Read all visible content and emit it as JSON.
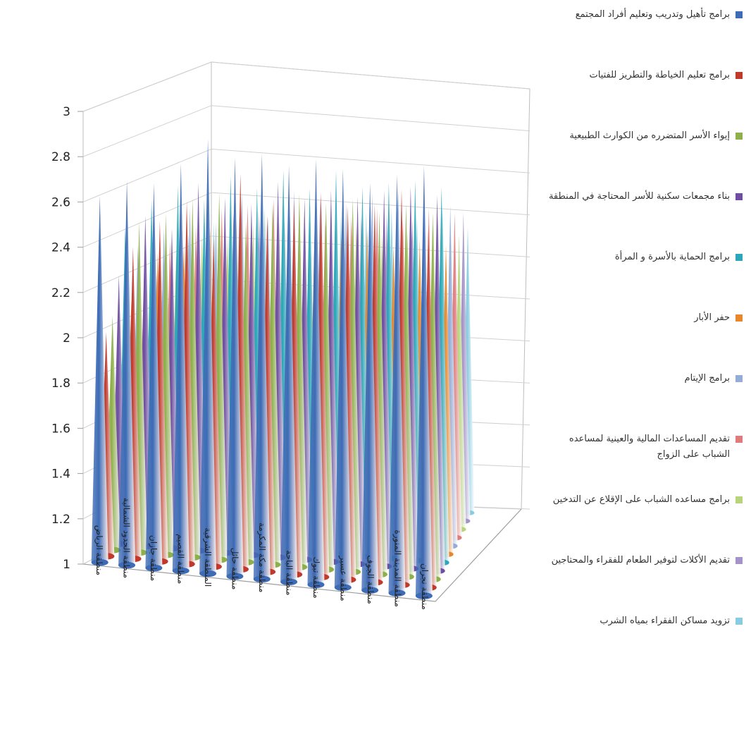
{
  "chart_data": {
    "type": "bar",
    "shape": "cone",
    "projection": "3d",
    "title": "",
    "xlabel": "",
    "ylabel": "",
    "ylim": [
      1,
      3
    ],
    "yticks": [
      "3",
      "2.8",
      "2.6",
      "2.4",
      "2.2",
      "2",
      "1.8",
      "1.6",
      "1.4",
      "1.2",
      "1"
    ],
    "grid": true,
    "legend_position": "right",
    "categories": [
      "منطقة الرياض",
      "منطقة الحدود الشمالية",
      "منطقة جازان",
      "منطقة القصيم",
      "المنطقة الشرقية",
      "منطقة حائل",
      "منطقة مكة المكرمة",
      "منطقة الباحة",
      "منطقة تبوك",
      "منطقة عسير",
      "منطقة الجوف",
      "منطقة المدينة المنورة",
      "منطقة نجران"
    ],
    "series": [
      {
        "name": "برامج تأهيل وتدريب وتعليم أفراد المجتمع",
        "color": "#3d6bb5",
        "values": [
          2.62,
          2.7,
          2.7,
          2.8,
          2.92,
          2.85,
          2.88,
          2.84,
          2.88,
          2.85,
          2.8,
          2.85,
          2.9
        ]
      },
      {
        "name": "برامج تعليم الخياطة والتطريز للفتيات",
        "color": "#c0392b",
        "values": [
          2.02,
          2.42,
          2.55,
          2.65,
          2.5,
          2.8,
          2.62,
          2.7,
          2.75,
          2.7,
          2.72,
          2.8,
          2.65
        ]
      },
      {
        "name": "إيواء الأسر المتضرره من الكوارث الطبيعية",
        "color": "#8db04a",
        "values": [
          2.1,
          2.55,
          2.6,
          2.68,
          2.72,
          2.6,
          2.7,
          2.75,
          2.72,
          2.75,
          2.7,
          2.75,
          2.72
        ]
      },
      {
        "name": "بناء مجمعات سكنية للأسر المحتاجة في المنطقة",
        "color": "#6e4ea1",
        "values": [
          2.3,
          2.6,
          2.55,
          2.78,
          2.72,
          2.7,
          2.82,
          2.75,
          2.8,
          2.78,
          2.82,
          2.85,
          2.82
        ]
      },
      {
        "name": "برامج الحماية بالأسرة و المرأة",
        "color": "#2aa7b8",
        "values": [
          2.55,
          2.7,
          2.78,
          2.72,
          2.85,
          2.8,
          2.9,
          2.82,
          2.92,
          2.85,
          2.88,
          2.9,
          2.88
        ]
      },
      {
        "name": "حفر الأبار",
        "color": "#e8872a",
        "values": [
          2.2,
          2.45,
          2.5,
          2.6,
          2.65,
          2.55,
          2.62,
          2.68,
          2.6,
          2.65,
          2.58,
          2.62,
          2.6
        ]
      },
      {
        "name": "برامج الإيتام",
        "color": "#94acd8",
        "values": [
          2.5,
          2.6,
          2.72,
          2.65,
          2.82,
          2.7,
          2.85,
          2.82,
          2.8,
          2.86,
          2.9,
          2.85,
          2.82
        ]
      },
      {
        "name": "تقديم المساعدات المالية والعينية لمساعده الشباب على الزواج",
        "color": "#e07b7b",
        "values": [
          2.35,
          2.55,
          2.65,
          2.75,
          2.78,
          2.82,
          2.8,
          2.72,
          2.75,
          2.8,
          2.75,
          2.82,
          2.8
        ]
      },
      {
        "name": "برامج مساعده الشباب على الإقلاع عن التدخين",
        "color": "#b7d47a",
        "values": [
          2.3,
          2.5,
          2.62,
          2.62,
          2.7,
          2.72,
          2.68,
          2.7,
          2.72,
          2.68,
          2.7,
          2.75,
          2.7
        ]
      },
      {
        "name": "تقديم الأكلات لتوفير الطعام للفقراء والمحتاجين",
        "color": "#a493c8",
        "values": [
          2.4,
          2.65,
          2.7,
          2.78,
          2.8,
          2.75,
          2.82,
          2.78,
          2.8,
          2.82,
          2.8,
          2.82,
          2.85
        ]
      },
      {
        "name": "تزويد مساكن الفقراء بمياه الشرب",
        "color": "#87cce0",
        "values": [
          2.5,
          2.68,
          2.75,
          2.82,
          2.85,
          2.8,
          2.88,
          2.82,
          2.85,
          2.88,
          2.82,
          2.9,
          2.78
        ]
      }
    ]
  }
}
